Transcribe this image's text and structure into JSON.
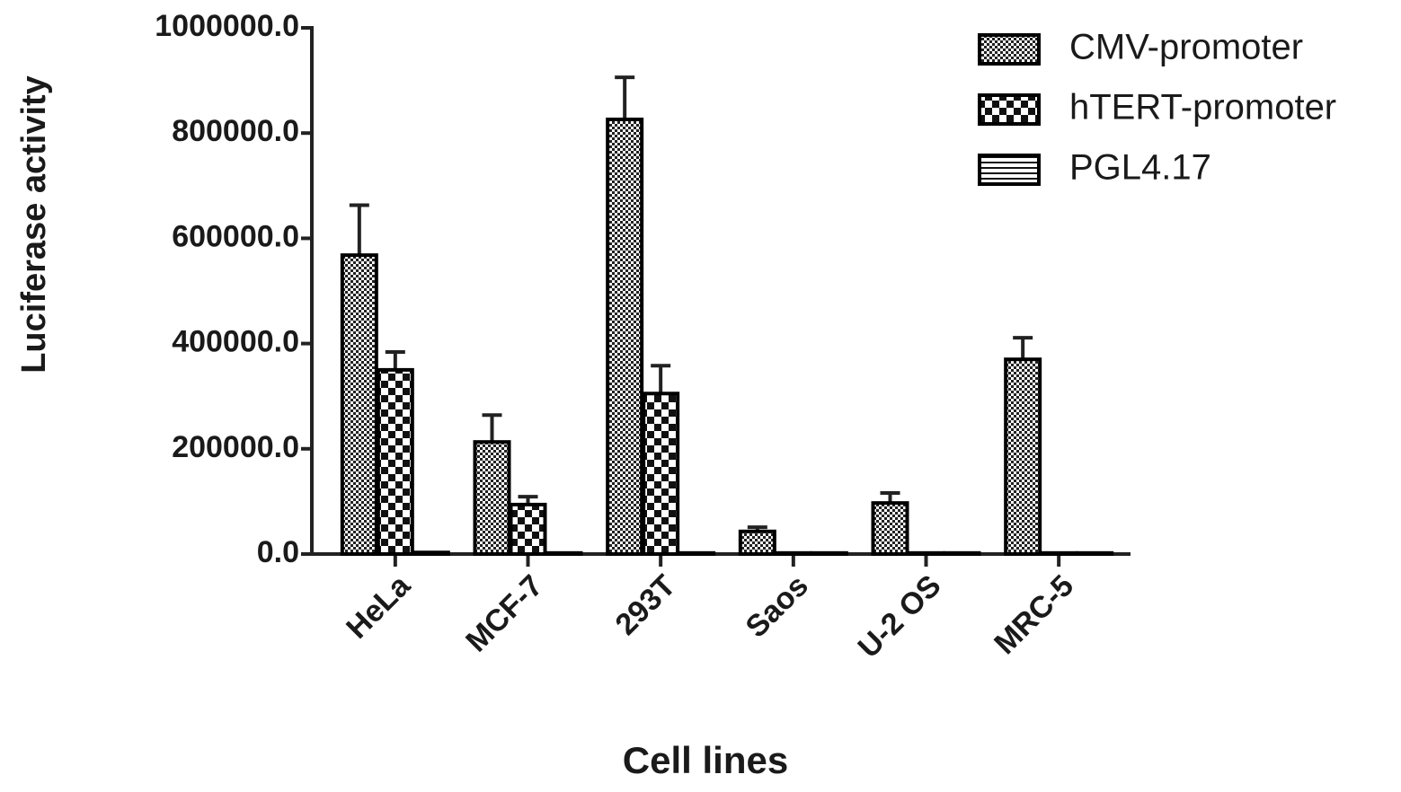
{
  "chart_data": {
    "type": "bar",
    "x_label": "Cell lines",
    "y_label": "Luciferase activity",
    "categories": [
      "HeLa",
      "MCF-7",
      "293T",
      "Saos",
      "U-2 OS",
      "MRC-5"
    ],
    "series": [
      {
        "name": "CMV-promoter",
        "color": "#000000",
        "pattern": "fine-check",
        "values": [
          568000,
          213000,
          826000,
          43000,
          97000,
          370000
        ],
        "errors": [
          95000,
          51000,
          80000,
          8000,
          19000,
          41000
        ]
      },
      {
        "name": "hTERT-promoter",
        "color": "#000000",
        "pattern": "checkerboard",
        "values": [
          350000,
          94000,
          305000,
          2000,
          2000,
          2000
        ],
        "errors": [
          34000,
          15000,
          53000,
          0,
          0,
          0
        ]
      },
      {
        "name": "PGL4.17",
        "color": "#000000",
        "pattern": "stripes",
        "values": [
          3000,
          2000,
          2000,
          2000,
          2000,
          2000
        ],
        "errors": [
          0,
          0,
          0,
          0,
          0,
          0
        ]
      }
    ],
    "ylim": [
      0,
      1000000
    ],
    "yticks": [
      {
        "value": 0,
        "label": "0.0"
      },
      {
        "value": 200000,
        "label": "200000.0"
      },
      {
        "value": 400000,
        "label": "400000.0"
      },
      {
        "value": 600000,
        "label": "600000.0"
      },
      {
        "value": 800000,
        "label": "800000.0"
      },
      {
        "value": 1000000,
        "label": "1000000.0"
      }
    ],
    "legend": "top-right",
    "grid": false
  }
}
